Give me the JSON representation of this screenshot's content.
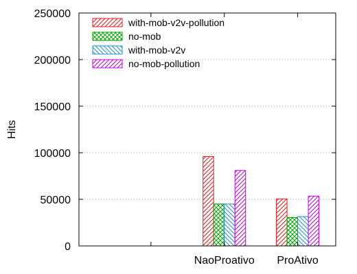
{
  "chart_data": {
    "type": "bar",
    "ylabel": "Hits",
    "xlabel": "",
    "ylim": [
      0,
      250000
    ],
    "yticks": [
      "0",
      "50000",
      "100000",
      "150000",
      "200000",
      "250000"
    ],
    "grid": "horizontal dotted",
    "legend_position": "top-left",
    "categories": [
      "",
      "NaoProativo",
      "ProAtivo"
    ],
    "series": [
      {
        "name": "with-mob-v2v-pollution",
        "color": "#e41a1c",
        "pattern": "diagonal-up",
        "values": [
          0,
          96000,
          50500
        ]
      },
      {
        "name": "no-mob",
        "color": "#00a000",
        "pattern": "crosshatch",
        "values": [
          0,
          45000,
          30500
        ]
      },
      {
        "name": "with-mob-v2v",
        "color": "#1e90c8",
        "pattern": "diagonal-down",
        "values": [
          0,
          45000,
          31500
        ]
      },
      {
        "name": "no-mob-pollution",
        "color": "#c000e0",
        "pattern": "diagonal-up",
        "values": [
          0,
          81000,
          53500
        ]
      }
    ]
  }
}
